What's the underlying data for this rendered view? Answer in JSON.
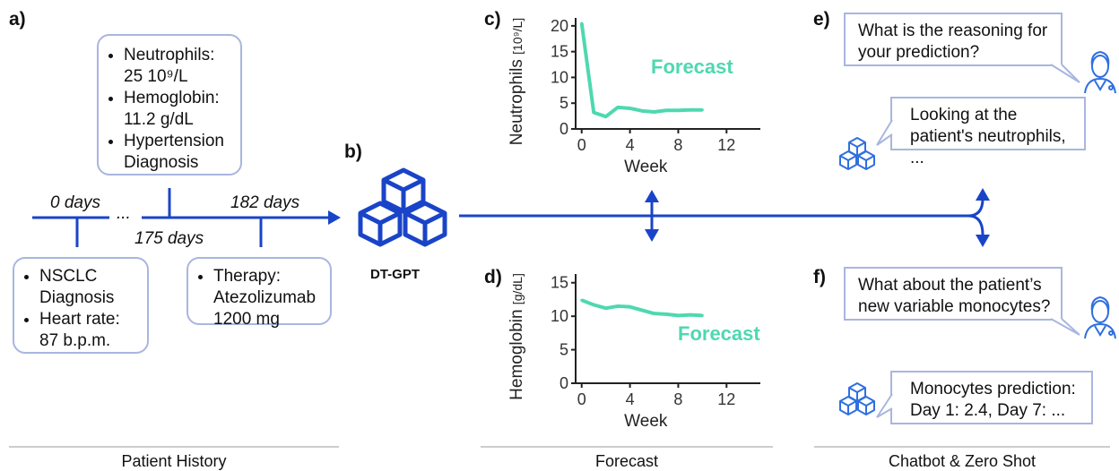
{
  "panel_labels": {
    "a": "a)",
    "b": "b)",
    "c": "c)",
    "d": "d)",
    "e": "e)",
    "f": "f)"
  },
  "history": {
    "top_box": [
      "Neutrophils:\n25 10⁹/L",
      "Hemoglobin:\n11.2 g/dL",
      "Hypertension\nDiagnosis"
    ],
    "bottom_left_box": [
      "NSCLC\nDiagnosis",
      "Heart rate:\n87 b.p.m."
    ],
    "bottom_right_box": [
      "Therapy:\nAtezolizumab\n1200 mg"
    ],
    "time_labels": {
      "t0": "0 days",
      "ellipsis": "...",
      "t175": "175 days",
      "t182": "182 days"
    }
  },
  "model_name": "DT-GPT",
  "chart_data": [
    {
      "type": "line",
      "panel": "c",
      "ylabel": "Neutrophils",
      "ylabel_unit": "[10⁹/L]",
      "xlabel": "Week",
      "annotation": "Forecast",
      "x": [
        0,
        1,
        2,
        3,
        4,
        5,
        6,
        7,
        8,
        9,
        10
      ],
      "y": [
        20.5,
        3.2,
        2.4,
        4.2,
        4.0,
        3.5,
        3.3,
        3.6,
        3.6,
        3.7,
        3.7
      ],
      "xlim": [
        -0.5,
        14.8
      ],
      "ylim": [
        0,
        20.5
      ],
      "xticks": [
        0,
        4,
        8,
        12
      ],
      "yticks": [
        0,
        5,
        10,
        15,
        20
      ],
      "color": "#4fd8b0"
    },
    {
      "type": "line",
      "panel": "d",
      "ylabel": "Hemoglobin",
      "ylabel_unit": "[g/dL]",
      "xlabel": "Week",
      "annotation": "Forecast",
      "x": [
        0,
        1,
        2,
        3,
        4,
        5,
        6,
        7,
        8,
        9,
        10
      ],
      "y": [
        12.4,
        11.7,
        11.2,
        11.5,
        11.4,
        10.9,
        10.4,
        10.3,
        10.1,
        10.2,
        10.1
      ],
      "xlim": [
        -0.5,
        14.8
      ],
      "ylim": [
        0,
        15.5
      ],
      "xticks": [
        0,
        4,
        8,
        12
      ],
      "yticks": [
        0,
        5,
        10,
        15
      ],
      "color": "#4fd8b0"
    }
  ],
  "chat": {
    "e_question": "What is the reasoning for\nyour prediction?",
    "e_answer": "Looking at the\npatient's neutrophils, ...",
    "f_question": "What about the patient’s\nnew variable monocytes?",
    "f_answer": "Monocytes prediction:\nDay 1: 2.4, Day 7: ..."
  },
  "sections": {
    "history": "Patient History",
    "forecast": "Forecast",
    "chatbot": "Chatbot & Zero Shot"
  },
  "colors": {
    "arrow": "#1a44c8",
    "box_border": "#a9b6df",
    "forecast_line": "#4fd8b0",
    "icon": "#2f6fe0"
  }
}
